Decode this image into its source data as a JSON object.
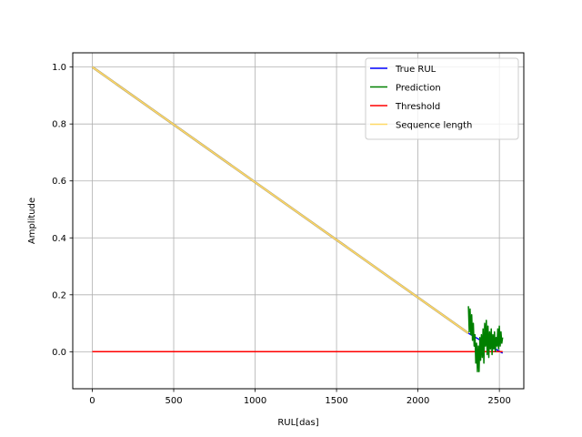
{
  "chart_data": {
    "type": "line",
    "xlabel": "RUL[das]",
    "ylabel": "Amplitude",
    "xlim": [
      -120,
      2650
    ],
    "ylim": [
      -0.13,
      1.05
    ],
    "x_ticks": [
      0,
      500,
      1000,
      1500,
      2000,
      2500
    ],
    "x_tick_labels": [
      "0",
      "500",
      "1000",
      "1500",
      "2000",
      "2500"
    ],
    "y_ticks": [
      0.0,
      0.2,
      0.4,
      0.6,
      0.8,
      1.0
    ],
    "y_tick_labels": [
      "0.0",
      "0.2",
      "0.4",
      "0.6",
      "0.8",
      "1.0"
    ],
    "grid": true,
    "legend_position": "top-right",
    "series": [
      {
        "name": "True RUL",
        "color": "#0000ff",
        "x": [
          2310,
          2520
        ],
        "y": [
          0.065,
          -0.005
        ]
      },
      {
        "name": "Prediction",
        "color": "#008000",
        "x": [
          2310,
          2315,
          2320,
          2325,
          2330,
          2335,
          2340,
          2345,
          2350,
          2355,
          2360,
          2365,
          2370,
          2375,
          2380,
          2385,
          2390,
          2395,
          2400,
          2405,
          2410,
          2415,
          2420,
          2425,
          2430,
          2435,
          2440,
          2445,
          2450,
          2455,
          2460,
          2465,
          2470,
          2475,
          2480,
          2485,
          2490,
          2495,
          2500,
          2505,
          2510,
          2515,
          2520
        ],
        "y": [
          0.16,
          0.07,
          0.15,
          0.06,
          0.13,
          0.04,
          0.1,
          0.02,
          0.06,
          -0.04,
          0.03,
          -0.07,
          0.02,
          -0.07,
          0.05,
          -0.03,
          0.06,
          -0.02,
          0.08,
          -0.04,
          0.1,
          0.02,
          0.11,
          -0.01,
          0.09,
          -0.02,
          0.07,
          0.01,
          0.08,
          -0.01,
          0.06,
          0.01,
          0.07,
          0.0,
          0.05,
          0.02,
          0.08,
          0.01,
          0.09,
          0.02,
          0.07,
          0.03,
          0.05
        ]
      },
      {
        "name": "Threshold",
        "color": "#ff0000",
        "x": [
          0,
          2520
        ],
        "y": [
          0.0,
          0.0
        ]
      },
      {
        "name": "Sequence length",
        "color": "#ffd966",
        "x": [
          0,
          2310
        ],
        "y": [
          1.0,
          0.065
        ]
      }
    ]
  }
}
